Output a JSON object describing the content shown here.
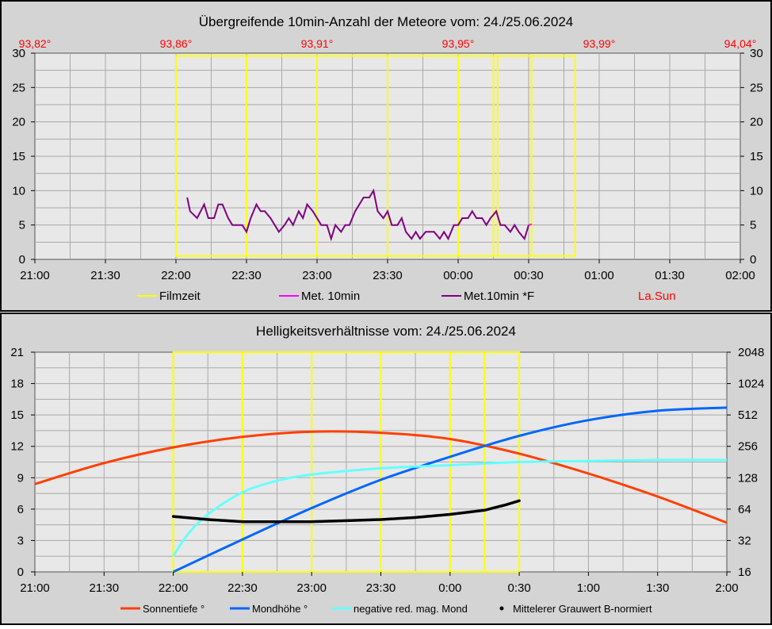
{
  "colors": {
    "panel_bg": "#d4d4d4",
    "plot_bg": "#e8e8e8",
    "grid": "#a9a9a9",
    "film": "#ffff00",
    "met10": "#ff00ff",
    "met10f": "#800080",
    "la_sun": "#ff0000",
    "sun": "#ff4000",
    "moon": "#0066ff",
    "moon_mag": "#66ffff",
    "grey": "#000000"
  },
  "chart_data": [
    {
      "type": "line",
      "title": "Übergreifende 10min-Anzahl der Meteore vom: 24./25.06.2024",
      "x_tick_labels": [
        "21:00",
        "21:30",
        "22:00",
        "22:30",
        "23:00",
        "23:30",
        "00:00",
        "00:30",
        "01:00",
        "01:30",
        "02:00"
      ],
      "x_range_hours": [
        21,
        26
      ],
      "top_tick_labels": [
        "93,82°",
        "93,86°",
        "93,91°",
        "93,95°",
        "93,99°",
        "94,04°"
      ],
      "y_tick_labels": [
        "0",
        "5",
        "10",
        "15",
        "20",
        "25",
        "30"
      ],
      "y_right_tick_labels": [
        "0",
        "5",
        "10",
        "15",
        "20",
        "25",
        "30"
      ],
      "ylim": [
        0,
        30
      ],
      "grid": true,
      "legend_position": "bottom",
      "legend": [
        "Filmzeit",
        "Met. 10min",
        "Met.10min *F",
        "La.Sun"
      ],
      "filmzeit": {
        "rect_x": [
          22.0,
          24.83
        ],
        "rect_y": [
          0.5,
          29.6
        ],
        "lines_x": [
          22.0,
          22.5,
          23.0,
          23.5,
          24.0,
          24.25,
          24.28,
          24.52
        ]
      },
      "series": [
        {
          "name": "Met.10min *F",
          "x": [
            22.08,
            22.1,
            22.15,
            22.2,
            22.23,
            22.27,
            22.3,
            22.33,
            22.37,
            22.4,
            22.43,
            22.47,
            22.5,
            22.53,
            22.57,
            22.6,
            22.63,
            22.67,
            22.7,
            22.73,
            22.77,
            22.8,
            22.83,
            22.87,
            22.9,
            22.93,
            22.97,
            23.0,
            23.03,
            23.07,
            23.1,
            23.13,
            23.17,
            23.2,
            23.23,
            23.27,
            23.3,
            23.33,
            23.37,
            23.4,
            23.43,
            23.47,
            23.5,
            23.53,
            23.57,
            23.6,
            23.63,
            23.67,
            23.7,
            23.73,
            23.77,
            23.8,
            23.83,
            23.87,
            23.9,
            23.93,
            23.97,
            24.0,
            24.03,
            24.07,
            24.1,
            24.13,
            24.17,
            24.2,
            24.23,
            24.27,
            24.3,
            24.33,
            24.37,
            24.4,
            24.43,
            24.47,
            24.5
          ],
          "y": [
            9,
            7,
            6,
            8,
            6,
            6,
            8,
            8,
            6,
            5,
            5,
            5,
            4,
            6,
            8,
            7,
            7,
            6,
            5,
            4,
            5,
            6,
            5,
            7,
            6,
            8,
            7,
            6,
            5,
            5,
            3,
            5,
            4,
            5,
            5,
            7,
            8,
            9,
            9,
            10,
            7,
            6,
            7,
            5,
            5,
            6,
            4,
            3,
            4,
            3,
            4,
            4,
            4,
            3,
            4,
            3,
            5,
            5,
            6,
            6,
            7,
            6,
            6,
            5,
            6,
            7,
            5,
            5,
            4,
            5,
            4,
            3,
            5
          ]
        }
      ]
    },
    {
      "type": "line",
      "title": "Helligkeitsverhältnisse vom: 24./25.06.2024",
      "x_tick_labels": [
        "21:00",
        "21:30",
        "22:00",
        "22:30",
        "23:00",
        "23:30",
        "0:00",
        "0:30",
        "1:00",
        "1:30",
        "2:00"
      ],
      "x_range_hours": [
        21,
        26
      ],
      "y_tick_labels": [
        "0",
        "3",
        "6",
        "9",
        "12",
        "15",
        "18",
        "21"
      ],
      "ylim": [
        0,
        21
      ],
      "y_right_tick_labels": [
        "16",
        "32",
        "64",
        "128",
        "256",
        "512",
        "1024",
        "2048"
      ],
      "y_right_scale": "log2",
      "y_right_range": [
        16,
        2048
      ],
      "grid": true,
      "legend_position": "bottom",
      "legend": [
        "Sonnentiefe °",
        "Mondhöhe °",
        "negative red. mag. Mond",
        "Mittelerer Grauwert B-normiert"
      ],
      "filmzeit": {
        "rect_x": [
          22.0,
          24.5
        ],
        "rect_y": [
          0,
          21
        ],
        "lines_x": [
          22.0,
          22.5,
          23.0,
          23.5,
          24.0,
          24.25,
          24.5
        ]
      },
      "series": [
        {
          "name": "Sonnentiefe °",
          "x": [
            21,
            21.5,
            22,
            22.5,
            23,
            23.5,
            24,
            24.5,
            25,
            25.5,
            26
          ],
          "y": [
            8.4,
            10.4,
            11.9,
            12.9,
            13.4,
            13.3,
            12.7,
            11.3,
            9.4,
            7.2,
            4.7
          ]
        },
        {
          "name": "Mondhöhe °",
          "x": [
            22,
            22.5,
            23,
            23.5,
            24,
            24.5,
            25,
            25.5,
            26
          ],
          "y": [
            0,
            3.1,
            6.1,
            8.8,
            11.0,
            13.0,
            14.5,
            15.4,
            15.7
          ]
        },
        {
          "name": "negative red. mag. Mond",
          "x": [
            22,
            22.1,
            22.25,
            22.5,
            22.75,
            23,
            23.5,
            24,
            24.5,
            25,
            25.5,
            26
          ],
          "y": [
            1.5,
            3.5,
            5.5,
            7.6,
            8.7,
            9.3,
            9.9,
            10.2,
            10.5,
            10.6,
            10.7,
            10.7
          ]
        },
        {
          "name": "Mittelerer Grauwert B-normiert",
          "x": [
            22,
            22.25,
            22.5,
            22.75,
            23,
            23.25,
            23.5,
            23.75,
            24,
            24.25,
            24.4,
            24.5
          ],
          "y": [
            5.3,
            5.0,
            4.8,
            4.8,
            4.8,
            4.9,
            5.0,
            5.2,
            5.5,
            5.9,
            6.4,
            6.8
          ]
        }
      ]
    }
  ]
}
